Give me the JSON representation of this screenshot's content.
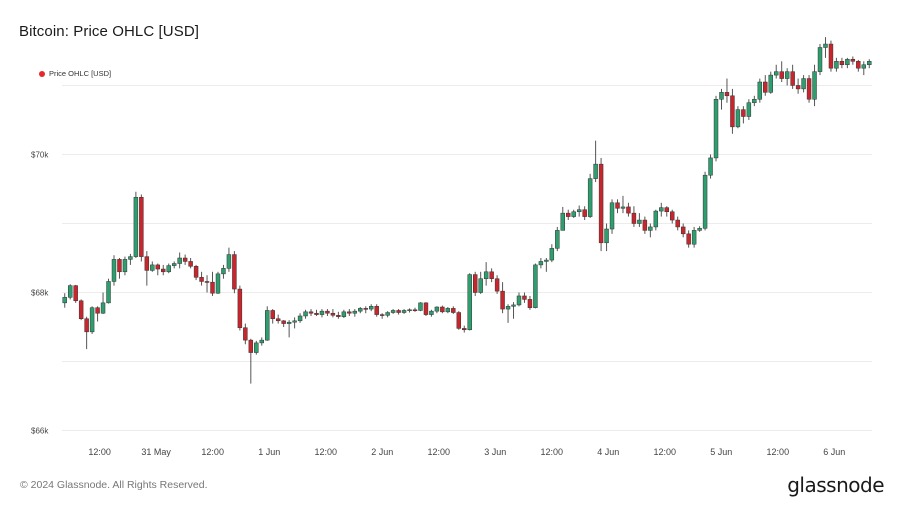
{
  "title": "Bitcoin: Price OHLC [USD]",
  "legend": {
    "label": "Price OHLC [USD]",
    "color": "#e8262b"
  },
  "footer": "© 2024 Glassnode. All Rights Reserved.",
  "logo": "glassnode",
  "colors": {
    "up": "#2e9e6f",
    "down": "#c9252c",
    "grid": "#ececec",
    "axis_text": "#444444"
  },
  "chart_data": {
    "type": "candlestick",
    "title": "Bitcoin: Price OHLC [USD]",
    "y_ticks": [
      {
        "value": 66000,
        "label": "$66k"
      },
      {
        "value": 68000,
        "label": "$68k"
      },
      {
        "value": 70000,
        "label": "$70k"
      }
    ],
    "ylim": [
      65950,
      71050
    ],
    "x_ticks": [
      {
        "hour": 12,
        "label": "12:00"
      },
      {
        "hour": 24,
        "label": "31 May"
      },
      {
        "hour": 36,
        "label": "12:00"
      },
      {
        "hour": 48,
        "label": "1 Jun"
      },
      {
        "hour": 60,
        "label": "12:00"
      },
      {
        "hour": 72,
        "label": "2 Jun"
      },
      {
        "hour": 84,
        "label": "12:00"
      },
      {
        "hour": 96,
        "label": "3 Jun"
      },
      {
        "hour": 108,
        "label": "12:00"
      },
      {
        "hour": 120,
        "label": "4 Jun"
      },
      {
        "hour": 132,
        "label": "12:00"
      },
      {
        "hour": 144,
        "label": "5 Jun"
      },
      {
        "hour": 156,
        "label": "12:00"
      },
      {
        "hour": 168,
        "label": "6 Jun"
      }
    ],
    "grid": true,
    "legend_position": "top-left",
    "candles_ohlc": [
      [
        67850,
        67990,
        67780,
        67930
      ],
      [
        67930,
        68120,
        67900,
        68100
      ],
      [
        68100,
        68110,
        67850,
        67880
      ],
      [
        67880,
        67900,
        67600,
        67620
      ],
      [
        67620,
        67650,
        67180,
        67430
      ],
      [
        67430,
        67800,
        67400,
        67780
      ],
      [
        67780,
        67800,
        67580,
        67700
      ],
      [
        67700,
        68000,
        67690,
        67850
      ],
      [
        67850,
        68200,
        67840,
        68160
      ],
      [
        68160,
        68540,
        68100,
        68480
      ],
      [
        68480,
        68500,
        68200,
        68300
      ],
      [
        68300,
        68520,
        68250,
        68480
      ],
      [
        68480,
        68560,
        68400,
        68520
      ],
      [
        68520,
        69460,
        68500,
        69380
      ],
      [
        69380,
        69420,
        68450,
        68520
      ],
      [
        68520,
        68600,
        68100,
        68320
      ],
      [
        68320,
        68450,
        68300,
        68400
      ],
      [
        68400,
        68420,
        68250,
        68340
      ],
      [
        68340,
        68400,
        68250,
        68300
      ],
      [
        68300,
        68420,
        68280,
        68390
      ],
      [
        68390,
        68450,
        68350,
        68420
      ],
      [
        68420,
        68580,
        68350,
        68500
      ],
      [
        68500,
        68550,
        68400,
        68450
      ],
      [
        68450,
        68500,
        68350,
        68380
      ],
      [
        68380,
        68400,
        68180,
        68220
      ],
      [
        68220,
        68300,
        68100,
        68160
      ],
      [
        68160,
        68250,
        68000,
        68150
      ],
      [
        68150,
        68300,
        67950,
        67990
      ],
      [
        67990,
        68300,
        67980,
        68270
      ],
      [
        68270,
        68400,
        68200,
        68350
      ],
      [
        68350,
        68650,
        68300,
        68550
      ],
      [
        68550,
        68600,
        67990,
        68050
      ],
      [
        68050,
        68100,
        67450,
        67490
      ],
      [
        67490,
        67550,
        67250,
        67310
      ],
      [
        67310,
        67330,
        66680,
        67130
      ],
      [
        67130,
        67300,
        67100,
        67270
      ],
      [
        67270,
        67350,
        67230,
        67310
      ],
      [
        67310,
        67800,
        67300,
        67740
      ],
      [
        67740,
        67760,
        67550,
        67620
      ],
      [
        67620,
        67680,
        67550,
        67590
      ],
      [
        67590,
        67600,
        67500,
        67550
      ],
      [
        67550,
        67600,
        67350,
        67570
      ],
      [
        67570,
        67640,
        67480,
        67590
      ],
      [
        67590,
        67700,
        67560,
        67660
      ],
      [
        67660,
        67750,
        67620,
        67720
      ],
      [
        67720,
        67760,
        67660,
        67700
      ],
      [
        67700,
        67750,
        67660,
        67680
      ],
      [
        67680,
        67760,
        67640,
        67730
      ],
      [
        67730,
        67760,
        67660,
        67700
      ],
      [
        67700,
        67760,
        67640,
        67670
      ],
      [
        67670,
        67720,
        67620,
        67650
      ],
      [
        67650,
        67750,
        67630,
        67720
      ],
      [
        67720,
        67760,
        67660,
        67700
      ],
      [
        67700,
        67760,
        67650,
        67730
      ],
      [
        67730,
        67790,
        67700,
        67770
      ],
      [
        67770,
        67800,
        67700,
        67760
      ],
      [
        67760,
        67830,
        67730,
        67800
      ],
      [
        67800,
        67830,
        67650,
        67680
      ],
      [
        67680,
        67700,
        67620,
        67670
      ],
      [
        67670,
        67730,
        67640,
        67710
      ],
      [
        67710,
        67760,
        67690,
        67740
      ],
      [
        67740,
        67760,
        67680,
        67710
      ],
      [
        67710,
        67760,
        67690,
        67740
      ],
      [
        67740,
        67770,
        67710,
        67750
      ],
      [
        67750,
        67780,
        67720,
        67740
      ],
      [
        67740,
        67860,
        67730,
        67850
      ],
      [
        67850,
        67860,
        67660,
        67680
      ],
      [
        67680,
        67750,
        67650,
        67730
      ],
      [
        67730,
        67800,
        67700,
        67790
      ],
      [
        67790,
        67810,
        67700,
        67720
      ],
      [
        67720,
        67790,
        67700,
        67770
      ],
      [
        67770,
        67800,
        67690,
        67710
      ],
      [
        67710,
        67730,
        67460,
        67480
      ],
      [
        67480,
        67520,
        67420,
        67460
      ],
      [
        67460,
        68280,
        67450,
        68260
      ],
      [
        68260,
        68300,
        67950,
        68000
      ],
      [
        68000,
        68300,
        67980,
        68200
      ],
      [
        68200,
        68440,
        68100,
        68300
      ],
      [
        68300,
        68350,
        68150,
        68200
      ],
      [
        68200,
        68250,
        67980,
        68020
      ],
      [
        68020,
        68150,
        67700,
        67760
      ],
      [
        67760,
        67830,
        67560,
        67800
      ],
      [
        67800,
        67860,
        67620,
        67820
      ],
      [
        67820,
        68000,
        67800,
        67950
      ],
      [
        67950,
        68000,
        67850,
        67900
      ],
      [
        67900,
        67950,
        67750,
        67780
      ],
      [
        67780,
        68420,
        67770,
        68400
      ],
      [
        68400,
        68500,
        68350,
        68450
      ],
      [
        68450,
        68500,
        68300,
        68470
      ],
      [
        68470,
        68700,
        68440,
        68640
      ],
      [
        68640,
        68950,
        68600,
        68900
      ],
      [
        68900,
        69240,
        68900,
        69150
      ],
      [
        69150,
        69200,
        69050,
        69100
      ],
      [
        69100,
        69200,
        69080,
        69170
      ],
      [
        69170,
        69260,
        69100,
        69200
      ],
      [
        69200,
        69250,
        69050,
        69100
      ],
      [
        69100,
        69720,
        69080,
        69650
      ],
      [
        69650,
        70200,
        69600,
        69860
      ],
      [
        69860,
        69950,
        68600,
        68720
      ],
      [
        68720,
        69000,
        68600,
        68920
      ],
      [
        68920,
        69350,
        68850,
        69300
      ],
      [
        69300,
        69350,
        69150,
        69220
      ],
      [
        69220,
        69400,
        69150,
        69240
      ],
      [
        69240,
        69300,
        69100,
        69150
      ],
      [
        69150,
        69250,
        68950,
        69000
      ],
      [
        69000,
        69150,
        68950,
        69050
      ],
      [
        69050,
        69100,
        68850,
        68900
      ],
      [
        68900,
        69000,
        68800,
        68950
      ],
      [
        68950,
        69200,
        68900,
        69180
      ],
      [
        69180,
        69300,
        69100,
        69230
      ],
      [
        69230,
        69250,
        69100,
        69170
      ],
      [
        69170,
        69200,
        69000,
        69050
      ],
      [
        69050,
        69100,
        68900,
        68950
      ],
      [
        68950,
        69000,
        68800,
        68850
      ],
      [
        68850,
        68900,
        68650,
        68700
      ],
      [
        68700,
        68950,
        68650,
        68900
      ],
      [
        68900,
        68960,
        68880,
        68930
      ],
      [
        68930,
        69750,
        68900,
        69700
      ],
      [
        69700,
        70000,
        69650,
        69950
      ],
      [
        69950,
        70850,
        69900,
        70800
      ],
      [
        70800,
        70950,
        70650,
        70900
      ],
      [
        70900,
        71100,
        70750,
        70850
      ],
      [
        70850,
        70950,
        70300,
        70400
      ],
      [
        70400,
        70700,
        70380,
        70650
      ],
      [
        70650,
        70700,
        70450,
        70550
      ],
      [
        70550,
        70800,
        70500,
        70750
      ],
      [
        70750,
        70850,
        70700,
        70800
      ],
      [
        70800,
        71100,
        70750,
        71050
      ],
      [
        71050,
        71150,
        70850,
        70900
      ],
      [
        70900,
        71200,
        70880,
        71150
      ],
      [
        71150,
        71300,
        71100,
        71200
      ],
      [
        71200,
        71350,
        71050,
        71100
      ],
      [
        71100,
        71250,
        71000,
        71200
      ],
      [
        71200,
        71300,
        70950,
        71000
      ],
      [
        71000,
        71100,
        70880,
        70950
      ],
      [
        70950,
        71150,
        70900,
        71100
      ],
      [
        71100,
        71150,
        70750,
        70800
      ],
      [
        70800,
        71300,
        70700,
        71200
      ],
      [
        71200,
        71600,
        71150,
        71550
      ],
      [
        71550,
        71700,
        71400,
        71600
      ],
      [
        71600,
        71650,
        71200,
        71250
      ],
      [
        71250,
        71400,
        71200,
        71350
      ],
      [
        71350,
        71400,
        71250,
        71300
      ],
      [
        71300,
        71400,
        71250,
        71380
      ],
      [
        71380,
        71420,
        71300,
        71350
      ],
      [
        71350,
        71370,
        71200,
        71250
      ],
      [
        71250,
        71350,
        71150,
        71300
      ],
      [
        71300,
        71380,
        71250,
        71350
      ]
    ]
  }
}
